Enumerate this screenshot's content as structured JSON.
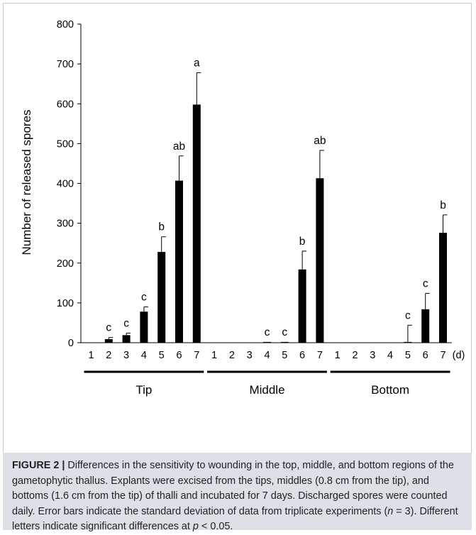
{
  "chart_data": {
    "type": "bar",
    "ylabel": "Number  of released spores",
    "ylim": [
      0,
      800
    ],
    "yticks": [
      0,
      100,
      200,
      300,
      400,
      500,
      600,
      700,
      800
    ],
    "x_unit_label": "(d)",
    "groups": [
      {
        "name": "Tip",
        "bars": [
          {
            "day": "1",
            "value": 0,
            "error": 0,
            "letter": ""
          },
          {
            "day": "2",
            "value": 9,
            "error": 4,
            "letter": "c"
          },
          {
            "day": "3",
            "value": 19,
            "error": 5,
            "letter": "c"
          },
          {
            "day": "4",
            "value": 78,
            "error": 12,
            "letter": "c"
          },
          {
            "day": "5",
            "value": 228,
            "error": 38,
            "letter": "b"
          },
          {
            "day": "6",
            "value": 407,
            "error": 62,
            "letter": "ab"
          },
          {
            "day": "7",
            "value": 598,
            "error": 80,
            "letter": "a"
          }
        ]
      },
      {
        "name": "Middle",
        "bars": [
          {
            "day": "1",
            "value": 0,
            "error": 0,
            "letter": ""
          },
          {
            "day": "2",
            "value": 0,
            "error": 0,
            "letter": ""
          },
          {
            "day": "3",
            "value": 0,
            "error": 0,
            "letter": ""
          },
          {
            "day": "4",
            "value": 2,
            "error": 0,
            "letter": "c"
          },
          {
            "day": "5",
            "value": 2,
            "error": 0,
            "letter": "c"
          },
          {
            "day": "6",
            "value": 184,
            "error": 46,
            "letter": "b"
          },
          {
            "day": "7",
            "value": 413,
            "error": 70,
            "letter": "ab"
          }
        ]
      },
      {
        "name": "Bottom",
        "bars": [
          {
            "day": "1",
            "value": 0,
            "error": 0,
            "letter": ""
          },
          {
            "day": "2",
            "value": 0,
            "error": 0,
            "letter": ""
          },
          {
            "day": "3",
            "value": 0,
            "error": 0,
            "letter": ""
          },
          {
            "day": "4",
            "value": 0,
            "error": 0,
            "letter": ""
          },
          {
            "day": "5",
            "value": 2,
            "error": 42,
            "letter": "c"
          },
          {
            "day": "6",
            "value": 84,
            "error": 40,
            "letter": "c"
          },
          {
            "day": "7",
            "value": 276,
            "error": 45,
            "letter": "b"
          }
        ]
      }
    ]
  },
  "caption": {
    "label": "FIGURE 2 |",
    "part1": " Differences in the sensitivity to wounding in the top, middle, and bottom regions of the gametophytic thallus. Explants were excised from the tips, middles (0.8 cm from the tip), and bottoms (1.6 cm from the tip) of thalli and incubated for 7 days. Discharged spores were counted daily. Error bars indicate the standard deviation of data from triplicate experiments (",
    "n_italic": "n",
    "part2": " = 3). Different letters indicate significant differences at ",
    "p_italic": "p",
    "part3": " < 0.05."
  },
  "colors": {
    "bar": "#000000",
    "caption_bg": "#dde1e7",
    "frame_border": "#c8c8c8"
  }
}
